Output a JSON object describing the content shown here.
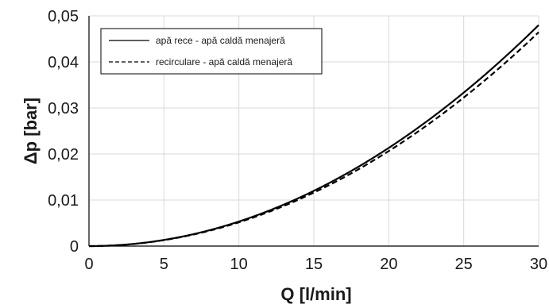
{
  "chart_data": {
    "type": "line",
    "xlabel": "Q [l/min]",
    "ylabel": "Δp [bar]",
    "xlim": [
      0,
      30
    ],
    "ylim": [
      0,
      0.05
    ],
    "x_ticks": [
      0,
      5,
      10,
      15,
      20,
      25,
      30
    ],
    "x_tick_labels": [
      "0",
      "5",
      "10",
      "15",
      "20",
      "25",
      "30"
    ],
    "y_ticks": [
      0,
      0.01,
      0.02,
      0.03,
      0.04,
      0.05
    ],
    "y_tick_labels": [
      "0",
      "0,01",
      "0,02",
      "0,03",
      "0,04",
      "0,05"
    ],
    "grid": true,
    "legend_position": "top-left",
    "x": [
      0,
      2.5,
      5,
      7.5,
      10,
      12.5,
      15,
      17.5,
      20,
      22.5,
      25,
      27.5,
      30
    ],
    "series": [
      {
        "name": "apă rece - apă caldă menajeră",
        "style": "solid",
        "color": "#000000",
        "values": [
          0,
          0.00033,
          0.00133,
          0.003,
          0.00533,
          0.00833,
          0.012,
          0.01633,
          0.02133,
          0.027,
          0.03333,
          0.04033,
          0.048
        ]
      },
      {
        "name": "recirculare - apă caldă menajeră",
        "style": "dashed",
        "color": "#000000",
        "values": [
          0,
          0.00032,
          0.00129,
          0.0029,
          0.00516,
          0.00806,
          0.01161,
          0.0158,
          0.02064,
          0.02613,
          0.03225,
          0.03903,
          0.04645
        ]
      }
    ]
  }
}
